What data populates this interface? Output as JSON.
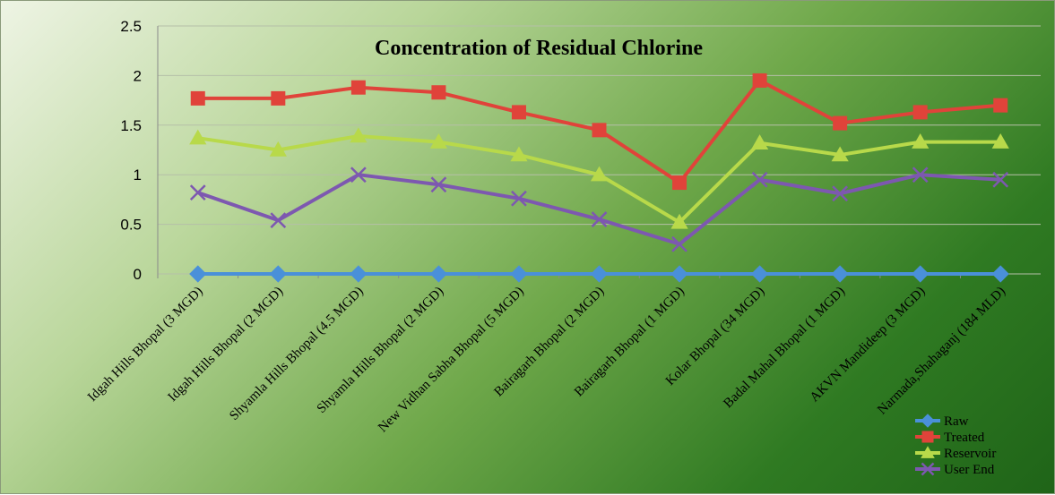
{
  "chart_data": {
    "type": "line",
    "title": "Concentration  of Residual Chlorine",
    "xlabel": "",
    "ylabel": "",
    "ylim": [
      0,
      2.5
    ],
    "y_ticks": [
      "0",
      "0.5",
      "1",
      "1.5",
      "2",
      "2.5"
    ],
    "grid": "horizontal",
    "legend_position": "bottom-right",
    "categories": [
      "Idgah Hills Bhopal (3 MGD)",
      "Idgah Hills Bhopal (2 MGD)",
      "Shyamla Hills Bhopal (4.5 MGD)",
      "Shyamla Hills Bhopal (2 MGD)",
      "New Vidhan Sabha Bhopal (5 MGD)",
      "Bairagarh Bhopal (2 MGD)",
      "Bairagarh Bhopal (1 MGD)",
      "Kolar Bhopal (34 MGD)",
      "Badal Mahal Bhopal (1 MGD)",
      "AKVN Mandideep (3 MGD)",
      "Narmada,Shahaganj (184 MLD)"
    ],
    "series": [
      {
        "name": "Raw",
        "color": "#4a90d9",
        "marker": "diamond",
        "values": [
          0,
          0,
          0,
          0,
          0,
          0,
          0,
          0,
          0,
          0,
          0
        ]
      },
      {
        "name": "Treated",
        "color": "#e0433a",
        "marker": "square",
        "values": [
          1.77,
          1.77,
          1.88,
          1.83,
          1.63,
          1.45,
          0.92,
          1.95,
          1.52,
          1.63,
          1.7
        ]
      },
      {
        "name": "Reservoir",
        "color": "#b8d94a",
        "marker": "triangle",
        "values": [
          1.37,
          1.25,
          1.39,
          1.33,
          1.2,
          1.0,
          0.52,
          1.32,
          1.2,
          1.33,
          1.33
        ]
      },
      {
        "name": "User End",
        "color": "#7d58b0",
        "marker": "x",
        "values": [
          0.82,
          0.54,
          1.0,
          0.9,
          0.76,
          0.55,
          0.3,
          0.95,
          0.81,
          1.0,
          0.95
        ]
      }
    ]
  }
}
